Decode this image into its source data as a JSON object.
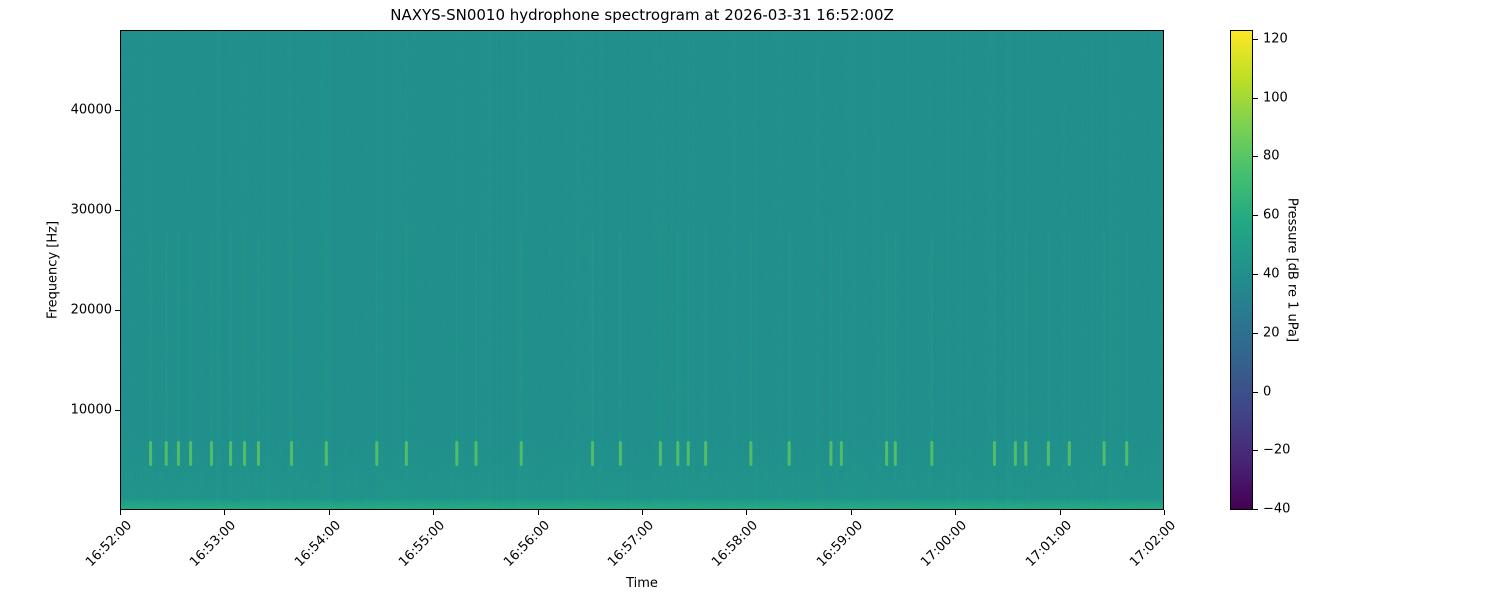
{
  "chart_data": {
    "type": "heatmap",
    "title": "NAXYS-SN0010 hydrophone spectrogram at 2026-03-31 16:52:00Z",
    "xlabel": "Time",
    "ylabel": "Frequency [Hz]",
    "colorbar_label": "Pressure [dB re 1 uPa]",
    "colormap": "viridis",
    "colormap_stops": [
      "#440154",
      "#482475",
      "#414487",
      "#355f8d",
      "#2a788e",
      "#21918c",
      "#22a884",
      "#44bf70",
      "#7ad151",
      "#bddf26",
      "#fde725"
    ],
    "x_ticks": [
      "16:52:00",
      "16:53:00",
      "16:54:00",
      "16:55:00",
      "16:56:00",
      "16:57:00",
      "16:58:00",
      "16:59:00",
      "17:00:00",
      "17:01:00",
      "17:02:00"
    ],
    "x_range": [
      "16:52:00",
      "17:02:00"
    ],
    "y_ticks": [
      10000,
      20000,
      30000,
      40000
    ],
    "y_range": [
      0,
      48000
    ],
    "color_ticks": [
      -40,
      -20,
      0,
      20,
      40,
      60,
      80,
      100,
      120
    ],
    "color_range": [
      -40.3,
      123
    ],
    "background_level_db": 41,
    "low_band": {
      "freq_max_hz": 1500,
      "level_db": 58
    },
    "transient_band_hz": [
      4500,
      7000
    ],
    "transient_level_db": 82,
    "transient_times": [
      "16:52:17",
      "16:52:26",
      "16:52:33",
      "16:52:40",
      "16:52:52",
      "16:53:03",
      "16:53:11",
      "16:53:19",
      "16:53:38",
      "16:53:58",
      "16:54:27",
      "16:54:44",
      "16:55:13",
      "16:55:24",
      "16:55:50",
      "16:56:31",
      "16:56:47",
      "16:57:10",
      "16:57:20",
      "16:57:26",
      "16:57:36",
      "16:58:02",
      "16:58:24",
      "16:58:48",
      "16:58:54",
      "16:59:20",
      "16:59:25",
      "16:59:46",
      "17:00:22",
      "17:00:34",
      "17:00:40",
      "17:00:53",
      "17:01:05",
      "17:01:25",
      "17:01:38"
    ]
  }
}
